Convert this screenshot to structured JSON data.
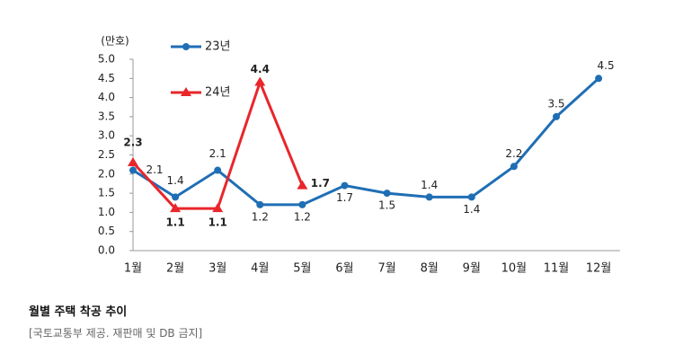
{
  "chart_data": {
    "type": "line",
    "y_label": "(만호)",
    "categories": [
      "1월",
      "2월",
      "3월",
      "4월",
      "5월",
      "6월",
      "7월",
      "8월",
      "9월",
      "10월",
      "11월",
      "12월"
    ],
    "series": [
      {
        "name": "23년",
        "color": "#1f6eb5",
        "values": [
          2.1,
          1.4,
          2.1,
          1.2,
          1.2,
          1.7,
          1.5,
          1.4,
          1.4,
          2.2,
          3.5,
          4.5
        ]
      },
      {
        "name": "24년",
        "color": "#e8262b",
        "values": [
          2.3,
          1.1,
          1.1,
          4.4,
          1.7,
          null,
          null,
          null,
          null,
          null,
          null,
          null
        ]
      }
    ],
    "ylim": [
      0,
      5
    ],
    "yticks": [
      {
        "value": 0,
        "label": "0.0"
      },
      {
        "value": 0.5,
        "label": "0.5"
      },
      {
        "value": 1,
        "label": "1.0"
      },
      {
        "value": 1.5,
        "label": "1.5"
      },
      {
        "value": 2,
        "label": "2.0"
      },
      {
        "value": 2.5,
        "label": "2.5"
      },
      {
        "value": 3,
        "label": "3.0"
      },
      {
        "value": 3.5,
        "label": "3.5"
      },
      {
        "value": 4,
        "label": "4.0"
      },
      {
        "value": 4.5,
        "label": "4.5"
      },
      {
        "value": 5,
        "label": "5.0"
      }
    ],
    "grid": false,
    "caption": "월별 주택 착공 추이",
    "source": "[국토교통부 제공. 재판매 및 DB 금지]"
  }
}
